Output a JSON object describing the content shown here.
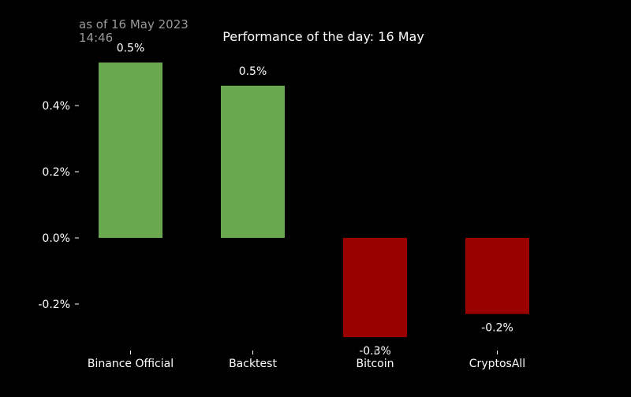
{
  "timestamp_lines": [
    "as of 16 May 2023",
    "14:46"
  ],
  "colors": {
    "background": "#000000",
    "positive": "#6aa84f",
    "negative": "#990000",
    "text": "#ffffff",
    "timestamp": "#999999"
  },
  "chart_data": {
    "type": "bar",
    "title": "Performance of the day: 16 May",
    "xlabel": "",
    "ylabel": "",
    "categories": [
      "Binance Official",
      "Backtest",
      "Bitcoin",
      "CryptosAll"
    ],
    "values": [
      0.53,
      0.46,
      -0.3,
      -0.23
    ],
    "value_unit": "%",
    "data_labels": [
      "0.5%",
      "0.5%",
      "-0.3%",
      "-0.2%"
    ],
    "yticks": [
      -0.2,
      0.0,
      0.2,
      0.4
    ],
    "ytick_labels": [
      "-0.2%",
      "0.0%",
      "0.2%",
      "0.4%"
    ],
    "ylim": [
      -0.3,
      0.53
    ],
    "grid": false,
    "legend": "none"
  }
}
